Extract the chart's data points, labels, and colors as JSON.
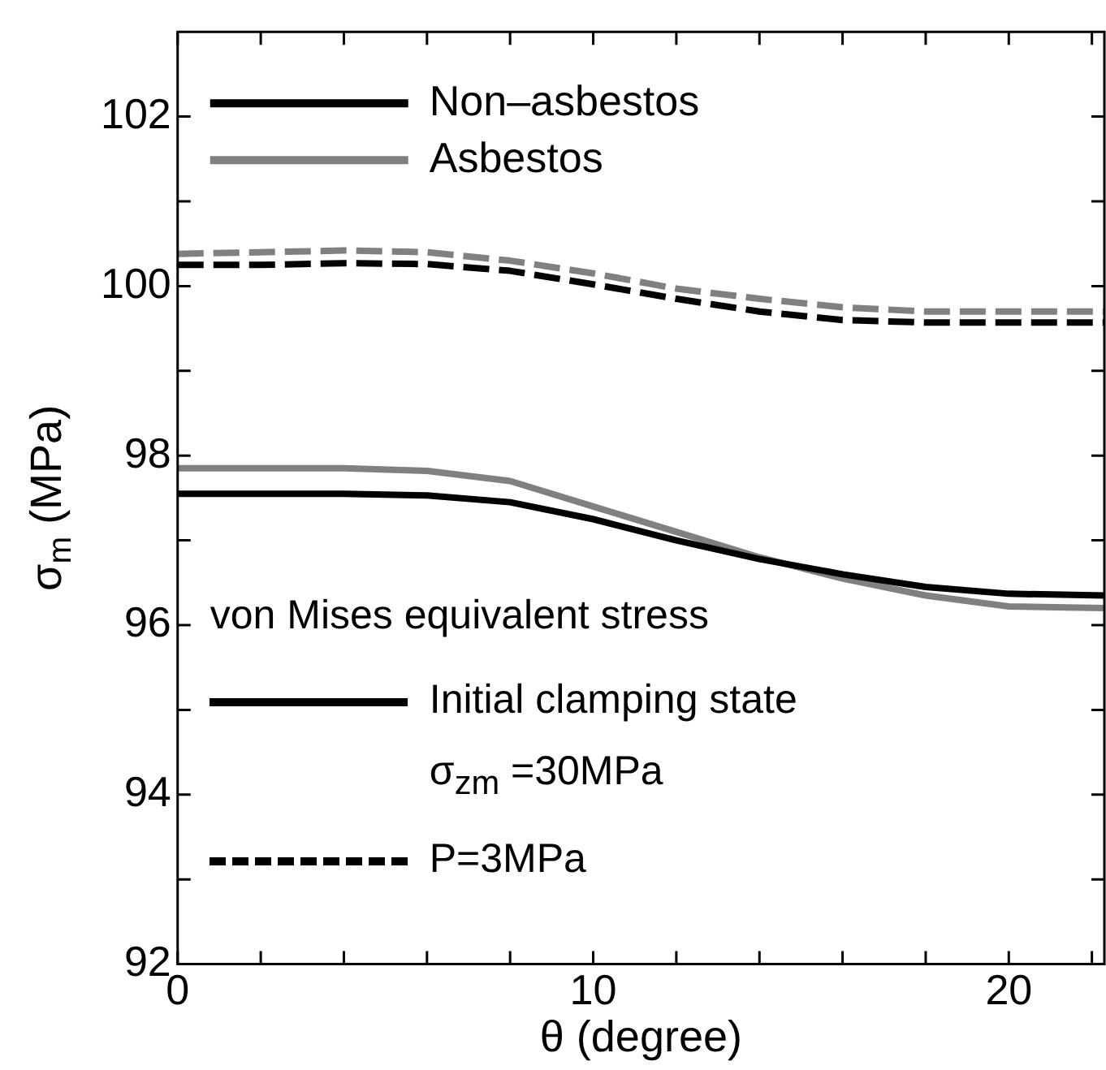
{
  "chart_data": {
    "type": "line",
    "xlabel": "θ (degree)",
    "ylabel": "σ$_{m}$ (MPa)",
    "x": [
      0,
      2,
      4,
      6,
      8,
      10,
      12,
      14,
      16,
      18,
      20,
      22.3
    ],
    "series": [
      {
        "name": "Non–asbestos",
        "color": "#000000",
        "line_style": "solid",
        "values": [
          97.55,
          97.55,
          97.55,
          97.53,
          97.45,
          97.25,
          97.0,
          96.78,
          96.6,
          96.45,
          96.37,
          96.35
        ]
      },
      {
        "name": "Asbestos",
        "color": "#808080",
        "line_style": "solid",
        "values": [
          97.85,
          97.85,
          97.85,
          97.82,
          97.7,
          97.4,
          97.1,
          96.8,
          96.55,
          96.35,
          96.22,
          96.2
        ]
      },
      {
        "color": "#000000",
        "line_style": "dashed",
        "values": [
          100.25,
          100.25,
          100.27,
          100.26,
          100.18,
          100.02,
          99.85,
          99.7,
          99.6,
          99.57,
          99.57,
          99.57
        ]
      },
      {
        "color": "#808080",
        "line_style": "dashed",
        "values": [
          100.38,
          100.4,
          100.42,
          100.4,
          100.3,
          100.15,
          99.97,
          99.85,
          99.75,
          99.7,
          99.7,
          99.7
        ]
      }
    ],
    "xlim": [
      0,
      22.3
    ],
    "ylim": [
      92,
      103
    ],
    "xticks": [
      0,
      {
        "value": 2,
        "label": null
      },
      {
        "value": 4,
        "label": null
      },
      {
        "value": 6,
        "label": null
      },
      {
        "value": 8,
        "label": null
      },
      10,
      {
        "value": 12,
        "label": null
      },
      {
        "value": 14,
        "label": null
      },
      {
        "value": 16,
        "label": null
      },
      {
        "value": 18,
        "label": null
      },
      20,
      {
        "value": 22,
        "label": null
      }
    ],
    "yticks": [
      92,
      {
        "value": 93,
        "label": null
      },
      94,
      {
        "value": 95,
        "label": null
      },
      96,
      {
        "value": 97,
        "label": null
      },
      98,
      {
        "value": 99,
        "label": null
      },
      100,
      {
        "value": 101,
        "label": null
      },
      102
    ],
    "grid": false,
    "legend": "top left",
    "marker": "none",
    "annotations": [
      "von Mises equivalent stress",
      "Initial clamping state",
      "σ$_{zm}$ =30MPa",
      "P=3MPa"
    ]
  }
}
